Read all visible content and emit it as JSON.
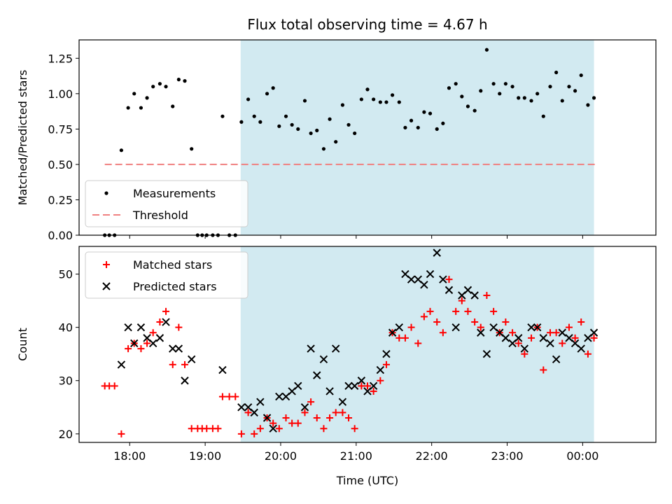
{
  "chart_data": {
    "type": "scatter",
    "title": "Flux total observing time = 4.67 h",
    "xlabel": "Time (UTC)",
    "x_unit": "hours (UTC, 24 = 00:00 next day)",
    "xlim": [
      17.33,
      24.97
    ],
    "xticks": [
      18,
      19,
      20,
      21,
      22,
      23,
      24
    ],
    "xtick_labels": [
      "18:00",
      "19:00",
      "20:00",
      "21:00",
      "22:00",
      "23:00",
      "00:00"
    ],
    "shaded_region": {
      "x_start": 19.47,
      "x_end": 24.15,
      "color": "#add8e6"
    },
    "colors": {
      "matched": "#ff0000",
      "predicted": "#000000",
      "measurements": "#000000",
      "threshold": "#f08080",
      "shade": "#add8e6"
    },
    "panels": [
      {
        "ylabel": "Matched/Predicted stars",
        "ylim": [
          0,
          1.38
        ],
        "yticks": [
          0.0,
          0.25,
          0.5,
          0.75,
          1.0,
          1.25
        ],
        "ytick_labels": [
          "0.00",
          "0.25",
          "0.50",
          "0.75",
          "1.00",
          "1.25"
        ],
        "legend": [
          "Measurements",
          "Threshold"
        ],
        "legend_position": "lower-left",
        "threshold": {
          "name": "Threshold",
          "value": 0.5,
          "x_start": 17.67,
          "x_end": 24.17
        },
        "series": [
          {
            "name": "Measurements",
            "marker": "dot",
            "points": [
              [
                17.67,
                0.0
              ],
              [
                17.73,
                0.0
              ],
              [
                17.8,
                0.0
              ],
              [
                17.89,
                0.6
              ],
              [
                17.98,
                0.9
              ],
              [
                18.06,
                1.0
              ],
              [
                18.15,
                0.9
              ],
              [
                18.23,
                0.97
              ],
              [
                18.31,
                1.05
              ],
              [
                18.4,
                1.07
              ],
              [
                18.48,
                1.05
              ],
              [
                18.57,
                0.91
              ],
              [
                18.65,
                1.1
              ],
              [
                18.73,
                1.09
              ],
              [
                18.82,
                0.61
              ],
              [
                18.9,
                0.0
              ],
              [
                18.96,
                0.0
              ],
              [
                19.02,
                0.0
              ],
              [
                19.1,
                0.0
              ],
              [
                19.17,
                0.0
              ],
              [
                19.23,
                0.84
              ],
              [
                19.32,
                0.0
              ],
              [
                19.4,
                0.0
              ],
              [
                19.48,
                0.8
              ],
              [
                19.57,
                0.96
              ],
              [
                19.65,
                0.84
              ],
              [
                19.73,
                0.8
              ],
              [
                19.82,
                1.0
              ],
              [
                19.9,
                1.04
              ],
              [
                19.98,
                0.77
              ],
              [
                20.07,
                0.84
              ],
              [
                20.15,
                0.78
              ],
              [
                20.23,
                0.75
              ],
              [
                20.32,
                0.95
              ],
              [
                20.4,
                0.72
              ],
              [
                20.48,
                0.74
              ],
              [
                20.57,
                0.61
              ],
              [
                20.65,
                0.82
              ],
              [
                20.73,
                0.66
              ],
              [
                20.82,
                0.92
              ],
              [
                20.9,
                0.78
              ],
              [
                20.98,
                0.72
              ],
              [
                21.07,
                0.96
              ],
              [
                21.15,
                1.03
              ],
              [
                21.23,
                0.96
              ],
              [
                21.32,
                0.94
              ],
              [
                21.4,
                0.94
              ],
              [
                21.48,
                0.99
              ],
              [
                21.57,
                0.94
              ],
              [
                21.65,
                0.76
              ],
              [
                21.73,
                0.81
              ],
              [
                21.82,
                0.76
              ],
              [
                21.9,
                0.87
              ],
              [
                21.98,
                0.86
              ],
              [
                22.07,
                0.75
              ],
              [
                22.15,
                0.79
              ],
              [
                22.23,
                1.04
              ],
              [
                22.32,
                1.07
              ],
              [
                22.4,
                0.98
              ],
              [
                22.48,
                0.91
              ],
              [
                22.57,
                0.88
              ],
              [
                22.65,
                1.02
              ],
              [
                22.73,
                1.31
              ],
              [
                22.82,
                1.07
              ],
              [
                22.9,
                1.0
              ],
              [
                22.98,
                1.07
              ],
              [
                23.07,
                1.05
              ],
              [
                23.15,
                0.97
              ],
              [
                23.23,
                0.97
              ],
              [
                23.32,
                0.95
              ],
              [
                23.4,
                1.0
              ],
              [
                23.48,
                0.84
              ],
              [
                23.57,
                1.05
              ],
              [
                23.65,
                1.15
              ],
              [
                23.73,
                0.95
              ],
              [
                23.82,
                1.05
              ],
              [
                23.9,
                1.02
              ],
              [
                23.98,
                1.13
              ],
              [
                24.07,
                0.92
              ],
              [
                24.15,
                0.97
              ]
            ]
          }
        ]
      },
      {
        "ylabel": "Count",
        "ylim": [
          18.4,
          55.2
        ],
        "yticks": [
          20,
          30,
          40,
          50
        ],
        "ytick_labels": [
          "20",
          "30",
          "40",
          "50"
        ],
        "legend": [
          "Matched stars",
          "Predicted stars"
        ],
        "legend_position": "top-left",
        "series": [
          {
            "name": "Matched stars",
            "marker": "plus",
            "points": [
              [
                17.67,
                29
              ],
              [
                17.73,
                29
              ],
              [
                17.8,
                29
              ],
              [
                17.89,
                20
              ],
              [
                17.98,
                36
              ],
              [
                18.06,
                37
              ],
              [
                18.15,
                36
              ],
              [
                18.23,
                37
              ],
              [
                18.31,
                39
              ],
              [
                18.4,
                41
              ],
              [
                18.48,
                43
              ],
              [
                18.57,
                33
              ],
              [
                18.65,
                40
              ],
              [
                18.73,
                33
              ],
              [
                18.82,
                21
              ],
              [
                18.9,
                21
              ],
              [
                18.96,
                21
              ],
              [
                19.02,
                21
              ],
              [
                19.1,
                21
              ],
              [
                19.17,
                21
              ],
              [
                19.23,
                27
              ],
              [
                19.32,
                27
              ],
              [
                19.4,
                27
              ],
              [
                19.48,
                20
              ],
              [
                19.57,
                24
              ],
              [
                19.65,
                20
              ],
              [
                19.73,
                21
              ],
              [
                19.82,
                23
              ],
              [
                19.9,
                22
              ],
              [
                19.98,
                21
              ],
              [
                20.07,
                23
              ],
              [
                20.15,
                22
              ],
              [
                20.23,
                22
              ],
              [
                20.32,
                24
              ],
              [
                20.4,
                26
              ],
              [
                20.48,
                23
              ],
              [
                20.57,
                21
              ],
              [
                20.65,
                23
              ],
              [
                20.73,
                24
              ],
              [
                20.82,
                24
              ],
              [
                20.9,
                23
              ],
              [
                20.98,
                21
              ],
              [
                21.07,
                29
              ],
              [
                21.15,
                29
              ],
              [
                21.23,
                28
              ],
              [
                21.32,
                30
              ],
              [
                21.4,
                33
              ],
              [
                21.48,
                39
              ],
              [
                21.57,
                38
              ],
              [
                21.65,
                38
              ],
              [
                21.73,
                40
              ],
              [
                21.82,
                37
              ],
              [
                21.9,
                42
              ],
              [
                21.98,
                43
              ],
              [
                22.07,
                41
              ],
              [
                22.15,
                39
              ],
              [
                22.23,
                49
              ],
              [
                22.32,
                43
              ],
              [
                22.4,
                45
              ],
              [
                22.48,
                43
              ],
              [
                22.57,
                41
              ],
              [
                22.65,
                40
              ],
              [
                22.73,
                46
              ],
              [
                22.82,
                43
              ],
              [
                22.9,
                39
              ],
              [
                22.98,
                41
              ],
              [
                23.07,
                39
              ],
              [
                23.15,
                37
              ],
              [
                23.23,
                35
              ],
              [
                23.32,
                38
              ],
              [
                23.4,
                40
              ],
              [
                23.48,
                32
              ],
              [
                23.57,
                39
              ],
              [
                23.65,
                39
              ],
              [
                23.73,
                37
              ],
              [
                23.82,
                40
              ],
              [
                23.9,
                38
              ],
              [
                23.98,
                41
              ],
              [
                24.07,
                35
              ],
              [
                24.15,
                38
              ]
            ]
          },
          {
            "name": "Predicted stars",
            "marker": "x",
            "points": [
              [
                17.89,
                33
              ],
              [
                17.98,
                40
              ],
              [
                18.06,
                37
              ],
              [
                18.15,
                40
              ],
              [
                18.23,
                38
              ],
              [
                18.31,
                37
              ],
              [
                18.4,
                38
              ],
              [
                18.48,
                41
              ],
              [
                18.57,
                36
              ],
              [
                18.65,
                36
              ],
              [
                18.73,
                30
              ],
              [
                18.82,
                34
              ],
              [
                19.23,
                32
              ],
              [
                19.48,
                25
              ],
              [
                19.57,
                25
              ],
              [
                19.65,
                24
              ],
              [
                19.73,
                26
              ],
              [
                19.82,
                23
              ],
              [
                19.9,
                21
              ],
              [
                19.98,
                27
              ],
              [
                20.07,
                27
              ],
              [
                20.15,
                28
              ],
              [
                20.23,
                29
              ],
              [
                20.32,
                25
              ],
              [
                20.4,
                36
              ],
              [
                20.48,
                31
              ],
              [
                20.57,
                34
              ],
              [
                20.65,
                28
              ],
              [
                20.73,
                36
              ],
              [
                20.82,
                26
              ],
              [
                20.9,
                29
              ],
              [
                20.98,
                29
              ],
              [
                21.07,
                30
              ],
              [
                21.15,
                28
              ],
              [
                21.23,
                29
              ],
              [
                21.32,
                32
              ],
              [
                21.4,
                35
              ],
              [
                21.48,
                39
              ],
              [
                21.57,
                40
              ],
              [
                21.65,
                50
              ],
              [
                21.73,
                49
              ],
              [
                21.82,
                49
              ],
              [
                21.9,
                48
              ],
              [
                21.98,
                50
              ],
              [
                22.07,
                54
              ],
              [
                22.15,
                49
              ],
              [
                22.23,
                47
              ],
              [
                22.32,
                40
              ],
              [
                22.4,
                46
              ],
              [
                22.48,
                47
              ],
              [
                22.57,
                46
              ],
              [
                22.65,
                39
              ],
              [
                22.73,
                35
              ],
              [
                22.82,
                40
              ],
              [
                22.9,
                39
              ],
              [
                22.98,
                38
              ],
              [
                23.07,
                37
              ],
              [
                23.15,
                38
              ],
              [
                23.23,
                36
              ],
              [
                23.32,
                40
              ],
              [
                23.4,
                40
              ],
              [
                23.48,
                38
              ],
              [
                23.57,
                37
              ],
              [
                23.65,
                34
              ],
              [
                23.73,
                39
              ],
              [
                23.82,
                38
              ],
              [
                23.9,
                37
              ],
              [
                23.98,
                36
              ],
              [
                24.07,
                38
              ],
              [
                24.15,
                39
              ]
            ]
          }
        ]
      }
    ]
  }
}
